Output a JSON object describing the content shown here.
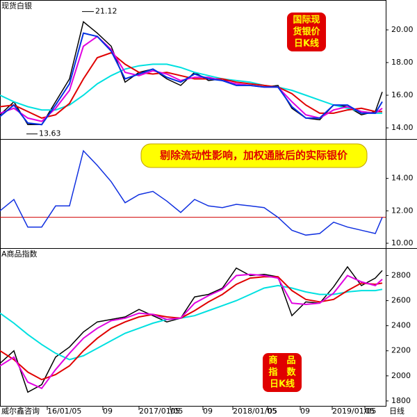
{
  "chart_data": [
    {
      "type": "line",
      "title": "现货白银",
      "box_text": [
        "国际现",
        "货银价",
        "日K线"
      ],
      "x": [
        0,
        2,
        4,
        6,
        8,
        10,
        12,
        14,
        16,
        18,
        20,
        22,
        24,
        26,
        28,
        30,
        32,
        34,
        36,
        38,
        40,
        42,
        44,
        46,
        48,
        50,
        52,
        54,
        55
      ],
      "xlim": [
        0,
        55.5
      ],
      "ylim": [
        13.32,
        21.83
      ],
      "yticks": [
        {
          "value": 14,
          "label": "14.00"
        },
        {
          "value": 16,
          "label": "16.00"
        },
        {
          "value": 18,
          "label": "18.00"
        },
        {
          "value": 20,
          "label": "20.00"
        }
      ],
      "high": 21.12,
      "low": 13.63,
      "series": [
        {
          "color": "#000000",
          "values": [
            14.8,
            15.6,
            14.2,
            14.2,
            15.6,
            17.0,
            20.5,
            19.8,
            19.0,
            16.8,
            17.4,
            17.6,
            17.0,
            16.6,
            17.4,
            16.9,
            17.0,
            16.6,
            16.6,
            16.5,
            16.6,
            15.2,
            14.6,
            14.5,
            15.4,
            15.3,
            14.8,
            15.0,
            16.2
          ]
        },
        {
          "color": "#00e0e0",
          "values": [
            16.0,
            15.6,
            15.3,
            15.1,
            15.1,
            15.4,
            16.0,
            16.7,
            17.2,
            17.6,
            17.8,
            17.9,
            17.9,
            17.7,
            17.4,
            17.2,
            17.0,
            16.9,
            16.8,
            16.6,
            16.5,
            16.3,
            16.0,
            15.7,
            15.4,
            15.2,
            15.0,
            14.9,
            14.9
          ]
        },
        {
          "color": "#e00000",
          "values": [
            15.3,
            15.4,
            15.0,
            14.6,
            14.8,
            15.5,
            17.0,
            18.3,
            18.6,
            17.9,
            17.4,
            17.3,
            17.4,
            17.2,
            17.0,
            17.0,
            17.0,
            16.8,
            16.7,
            16.6,
            16.5,
            16.1,
            15.4,
            14.9,
            14.9,
            15.1,
            15.2,
            15.0,
            15.0
          ]
        },
        {
          "color": "#e000e0",
          "values": [
            14.9,
            15.2,
            14.6,
            14.4,
            15.2,
            16.3,
            19.0,
            19.6,
            18.8,
            17.4,
            17.2,
            17.5,
            17.3,
            16.9,
            17.1,
            17.1,
            16.9,
            16.7,
            16.6,
            16.5,
            16.5,
            15.6,
            14.8,
            14.6,
            15.1,
            15.3,
            15.0,
            14.9,
            15.2
          ]
        },
        {
          "color": "#0030e0",
          "values": [
            14.7,
            15.4,
            14.3,
            14.2,
            15.4,
            16.7,
            19.8,
            19.6,
            18.7,
            17.0,
            17.3,
            17.6,
            17.1,
            16.8,
            17.3,
            17.0,
            16.9,
            16.6,
            16.6,
            16.5,
            16.5,
            15.3,
            14.6,
            14.6,
            15.4,
            15.4,
            14.9,
            14.9,
            15.6
          ]
        }
      ]
    },
    {
      "type": "line",
      "title": "剔除流动性影响，加权通胀后的实际银价",
      "x": [
        0,
        2,
        4,
        6,
        8,
        10,
        12,
        14,
        16,
        18,
        20,
        22,
        24,
        26,
        28,
        30,
        32,
        34,
        36,
        38,
        40,
        42,
        44,
        46,
        48,
        50,
        52,
        54,
        55
      ],
      "xlim": [
        0,
        55.5
      ],
      "ylim": [
        9.7,
        16.43
      ],
      "yticks": [
        {
          "value": 10,
          "label": "10.00"
        },
        {
          "value": 12,
          "label": "12.00"
        },
        {
          "value": 14,
          "label": "14.00"
        }
      ],
      "reference_line": 11.6,
      "series": [
        {
          "color": "#1030e0",
          "values": [
            12.0,
            12.7,
            11.0,
            11.0,
            12.3,
            12.3,
            15.7,
            14.8,
            13.8,
            12.5,
            13.0,
            13.2,
            12.6,
            11.9,
            12.7,
            12.3,
            12.2,
            12.4,
            12.3,
            12.2,
            11.6,
            10.8,
            10.5,
            10.6,
            11.3,
            11.0,
            10.8,
            10.6,
            11.6
          ]
        }
      ]
    },
    {
      "type": "line",
      "title": "A商品指数",
      "box_text": [
        "商　品",
        "指　数",
        "日K线"
      ],
      "x": [
        0,
        2,
        4,
        6,
        8,
        10,
        12,
        14,
        16,
        18,
        20,
        22,
        24,
        26,
        28,
        30,
        32,
        34,
        36,
        38,
        40,
        42,
        44,
        46,
        48,
        50,
        52,
        54,
        55
      ],
      "xlim": [
        0,
        55.5
      ],
      "ylim": [
        1755,
        3019
      ],
      "yticks": [
        1800,
        2000,
        2200,
        2400,
        2600,
        2800
      ],
      "xticks": [
        {
          "value": 6.8,
          "label": "16/01/05"
        },
        {
          "value": 14.8,
          "label": "09"
        },
        {
          "value": 20,
          "label": "2017/01/05"
        },
        {
          "value": 24.5,
          "label": "05"
        },
        {
          "value": 29.2,
          "label": "09"
        },
        {
          "value": 33.5,
          "label": "2018/01/05"
        },
        {
          "value": 38.5,
          "label": "05"
        },
        {
          "value": 43.2,
          "label": "09"
        },
        {
          "value": 47.8,
          "label": "2019/01/05"
        },
        {
          "value": 52.5,
          "label": "05"
        }
      ],
      "source": "威尔鑫咨询",
      "period": "日线",
      "series": [
        {
          "color": "#000000",
          "values": [
            2100,
            2200,
            1870,
            1930,
            2150,
            2230,
            2350,
            2430,
            2450,
            2470,
            2530,
            2480,
            2430,
            2460,
            2630,
            2650,
            2700,
            2860,
            2800,
            2810,
            2790,
            2480,
            2590,
            2580,
            2710,
            2870,
            2720,
            2780,
            2840
          ]
        },
        {
          "color": "#00e0e0",
          "values": [
            2500,
            2420,
            2330,
            2250,
            2180,
            2130,
            2160,
            2220,
            2280,
            2340,
            2380,
            2420,
            2450,
            2460,
            2480,
            2520,
            2560,
            2600,
            2650,
            2700,
            2720,
            2700,
            2670,
            2650,
            2650,
            2670,
            2680,
            2680,
            2690
          ]
        },
        {
          "color": "#e00000",
          "values": [
            2200,
            2130,
            2030,
            1970,
            2010,
            2080,
            2200,
            2300,
            2380,
            2430,
            2470,
            2490,
            2470,
            2460,
            2520,
            2590,
            2650,
            2730,
            2780,
            2790,
            2790,
            2680,
            2610,
            2590,
            2610,
            2680,
            2740,
            2730,
            2740
          ]
        },
        {
          "color": "#e000e0",
          "values": [
            2080,
            2150,
            1950,
            1900,
            2050,
            2180,
            2300,
            2380,
            2440,
            2460,
            2500,
            2490,
            2450,
            2460,
            2580,
            2640,
            2690,
            2800,
            2810,
            2800,
            2780,
            2580,
            2570,
            2580,
            2660,
            2800,
            2750,
            2720,
            2770
          ]
        }
      ]
    }
  ]
}
